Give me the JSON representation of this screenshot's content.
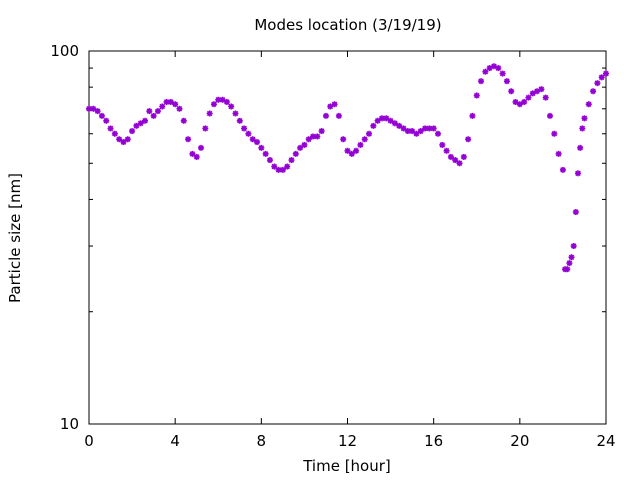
{
  "chart_data": {
    "type": "scatter",
    "title": "Modes location (3/19/19)",
    "xlabel": "Time [hour]",
    "ylabel": "Particle size [nm]",
    "xlim": [
      0,
      24
    ],
    "ylim": [
      10,
      100
    ],
    "yscale": "log",
    "grid": false,
    "legend": "none",
    "marker_color": "#9400d3",
    "x_ticks": [
      0,
      4,
      8,
      12,
      16,
      20,
      24
    ],
    "x_tick_labels": [
      "0",
      "4",
      "8",
      "12",
      "16",
      "20",
      "24"
    ],
    "y_ticks": [
      10,
      100
    ],
    "y_tick_labels": [
      "10",
      "100"
    ],
    "series": [
      {
        "name": "",
        "x": [
          0.0,
          0.2,
          0.4,
          0.6,
          0.8,
          1.0,
          1.2,
          1.4,
          1.6,
          1.8,
          2.0,
          2.2,
          2.4,
          2.6,
          2.8,
          3.0,
          3.2,
          3.4,
          3.6,
          3.8,
          4.0,
          4.2,
          4.4,
          4.6,
          4.8,
          5.0,
          5.2,
          5.4,
          5.6,
          5.8,
          6.0,
          6.2,
          6.4,
          6.6,
          6.8,
          7.0,
          7.2,
          7.4,
          7.6,
          7.8,
          8.0,
          8.2,
          8.4,
          8.6,
          8.8,
          9.0,
          9.2,
          9.4,
          9.6,
          9.8,
          10.0,
          10.2,
          10.4,
          10.6,
          10.8,
          11.0,
          11.2,
          11.4,
          11.6,
          11.8,
          12.0,
          12.2,
          12.4,
          12.6,
          12.8,
          13.0,
          13.2,
          13.4,
          13.6,
          13.8,
          14.0,
          14.2,
          14.4,
          14.6,
          14.8,
          15.0,
          15.2,
          15.4,
          15.6,
          15.8,
          16.0,
          16.2,
          16.4,
          16.6,
          16.8,
          17.0,
          17.2,
          17.4,
          17.6,
          17.8,
          18.0,
          18.2,
          18.4,
          18.6,
          18.8,
          19.0,
          19.2,
          19.4,
          19.6,
          19.8,
          20.0,
          20.2,
          20.4,
          20.6,
          20.8,
          21.0,
          21.2,
          21.4,
          21.6,
          21.8,
          22.0,
          22.1,
          22.2,
          22.3,
          22.4,
          22.5,
          22.6,
          22.7,
          22.8,
          22.9,
          23.0,
          23.2,
          23.4,
          23.6,
          23.8,
          24.0
        ],
        "y": [
          70,
          70,
          69,
          67,
          65,
          62,
          60,
          58,
          57,
          58,
          61,
          63,
          64,
          65,
          69,
          67,
          69,
          71,
          73,
          73,
          72,
          70,
          65,
          58,
          53,
          52,
          55,
          62,
          68,
          72,
          74,
          74,
          73,
          71,
          68,
          65,
          62,
          60,
          58,
          57,
          55,
          53,
          51,
          49,
          48,
          48,
          49,
          51,
          53,
          55,
          56,
          58,
          59,
          59,
          61,
          67,
          71,
          72,
          67,
          58,
          54,
          53,
          54,
          56,
          58,
          60,
          63,
          65,
          66,
          66,
          65,
          64,
          63,
          62,
          61,
          61,
          60,
          61,
          62,
          62,
          62,
          60,
          56,
          54,
          52,
          51,
          50,
          52,
          58,
          67,
          76,
          83,
          88,
          90,
          91,
          90,
          87,
          83,
          78,
          73,
          72,
          73,
          75,
          77,
          78,
          79,
          75,
          67,
          60,
          53,
          48,
          26,
          26,
          27,
          28,
          30,
          37,
          47,
          55,
          62,
          66,
          72,
          78,
          82,
          85,
          87
        ]
      }
    ]
  }
}
